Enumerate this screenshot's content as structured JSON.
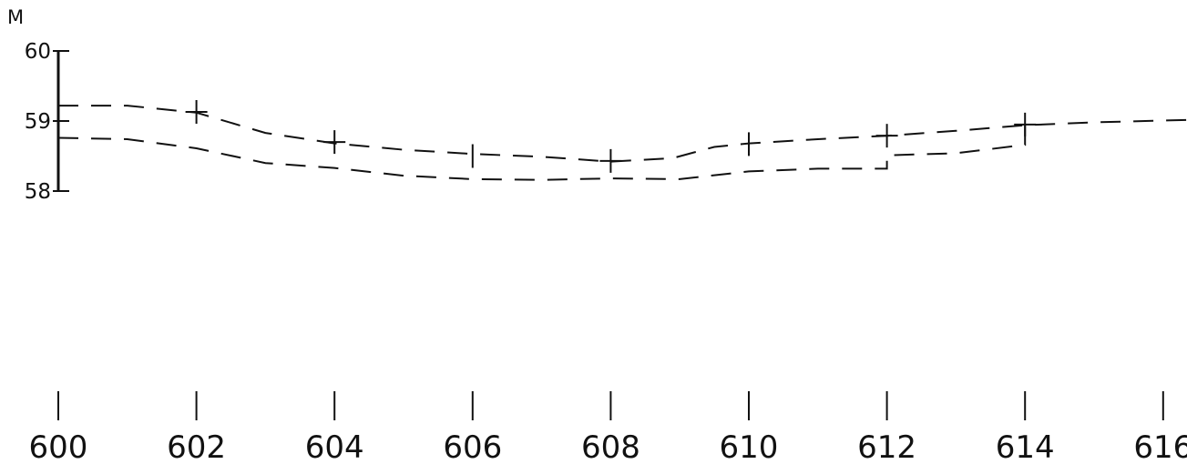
{
  "chart_data": {
    "type": "line",
    "title": "",
    "xlabel": "",
    "ylabel": "",
    "y_unit_label": "M",
    "xlim": [
      600,
      616
    ],
    "ylim": [
      58,
      60
    ],
    "x_ticks": [
      600,
      602,
      604,
      606,
      608,
      610,
      612,
      614,
      616
    ],
    "y_ticks": [
      58,
      59,
      60
    ],
    "grid": false,
    "series": [
      {
        "style": "dashed",
        "points": [
          {
            "x": 600,
            "y": 59.22
          },
          {
            "x": 601,
            "y": 59.22
          },
          {
            "x": 602,
            "y": 59.12
          },
          {
            "x": 603,
            "y": 58.83
          },
          {
            "x": 604,
            "y": 58.68
          },
          {
            "x": 605,
            "y": 58.59
          },
          {
            "x": 606,
            "y": 58.53
          },
          {
            "x": 607,
            "y": 58.49
          },
          {
            "x": 608,
            "y": 58.42
          },
          {
            "x": 608.9,
            "y": 58.47
          },
          {
            "x": 609.5,
            "y": 58.63
          },
          {
            "x": 610,
            "y": 58.68
          },
          {
            "x": 611,
            "y": 58.74
          },
          {
            "x": 612,
            "y": 58.79
          },
          {
            "x": 613,
            "y": 58.86
          },
          {
            "x": 614,
            "y": 58.94
          },
          {
            "x": 615,
            "y": 58.98
          },
          {
            "x": 616.5,
            "y": 59.02
          }
        ]
      },
      {
        "style": "dashed",
        "points": [
          {
            "x": 600,
            "y": 58.76
          },
          {
            "x": 601,
            "y": 58.74
          },
          {
            "x": 602,
            "y": 58.61
          },
          {
            "x": 603,
            "y": 58.4
          },
          {
            "x": 604,
            "y": 58.33
          },
          {
            "x": 605,
            "y": 58.22
          },
          {
            "x": 606,
            "y": 58.17
          },
          {
            "x": 607,
            "y": 58.16
          },
          {
            "x": 608,
            "y": 58.18
          },
          {
            "x": 609,
            "y": 58.17
          },
          {
            "x": 610,
            "y": 58.28
          },
          {
            "x": 611,
            "y": 58.32
          },
          {
            "x": 612,
            "y": 58.32
          },
          {
            "x": 612,
            "y": 58.51
          },
          {
            "x": 613,
            "y": 58.54
          },
          {
            "x": 614,
            "y": 58.66
          },
          {
            "x": 614,
            "y": 58.95
          }
        ]
      }
    ],
    "markers": [
      {
        "x": 602,
        "y": 59.13,
        "shape": "cross"
      },
      {
        "x": 604,
        "y": 58.7,
        "shape": "cross"
      },
      {
        "x": 606,
        "y": 58.5,
        "shape": "tick"
      },
      {
        "x": 608,
        "y": 58.43,
        "shape": "cross"
      },
      {
        "x": 610,
        "y": 58.67,
        "shape": "tick"
      },
      {
        "x": 612,
        "y": 58.79,
        "shape": "cross"
      },
      {
        "x": 614,
        "y": 58.95,
        "shape": "cross"
      }
    ]
  }
}
